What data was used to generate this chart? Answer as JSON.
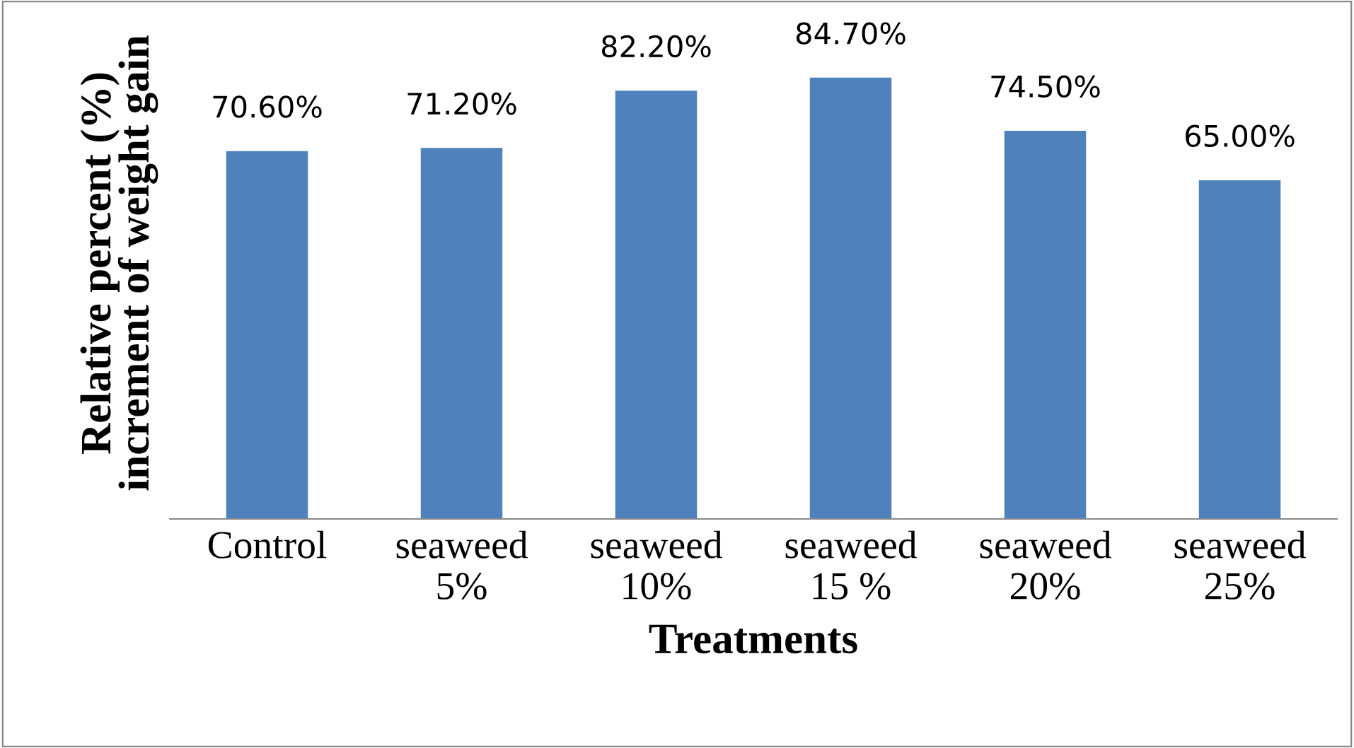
{
  "chart_data": {
    "type": "bar",
    "xlabel": "Treatments",
    "ylabel": "Relative percent (%)\nincrement of weight gain",
    "categories": [
      "Control",
      "seaweed\n5%",
      "seaweed\n10%",
      "seaweed\n15 %",
      "seaweed\n20%",
      "seaweed\n25%"
    ],
    "values": [
      70.6,
      71.2,
      82.2,
      84.7,
      74.5,
      65.0
    ],
    "value_labels": [
      "70.60%",
      "71.20%",
      "82.20%",
      "84.70%",
      "74.50%",
      "65.00%"
    ],
    "color": "#4f81bd",
    "grid": false,
    "legend": false
  }
}
